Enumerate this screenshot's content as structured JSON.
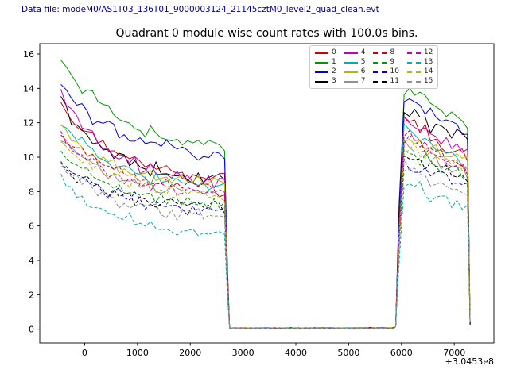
{
  "header": {
    "data_file_label": "Data file: modeM0/AS1T03_136T01_9000003124_21145cztM0_level2_quad_clean.evt"
  },
  "chart_data": {
    "type": "line",
    "title": "Quadrant 0 module wise count rates with 100.0s bins.",
    "xlabel": "",
    "ylabel": "",
    "x_offset_label": "+3.0453e8",
    "x_units_note": "time in seconds relative to offset shown at bottom right",
    "bin_size_s": 100.0,
    "xlim": [
      -850,
      7750
    ],
    "ylim": [
      -0.8,
      16.6
    ],
    "x_ticks": [
      0,
      1000,
      2000,
      3000,
      4000,
      5000,
      6000,
      7000
    ],
    "y_ticks": [
      0,
      2,
      4,
      6,
      8,
      10,
      12,
      14,
      16
    ],
    "grid": false,
    "legend_position": "upper center-right, 4 columns",
    "profile": {
      "observe_start_x": -450,
      "decline_end_x": 2650,
      "drop_to_zero_x": 2745,
      "gap_range_x": [
        2750,
        5850
      ],
      "gap_level": 0.05,
      "rise_start_x": 5890,
      "peak_x": 6050,
      "decline2_end_x": 7250,
      "final_drop_x": 7300
    },
    "series": [
      {
        "name": "0",
        "color": "#d40000",
        "dash": false,
        "levels": {
          "start": 13.0,
          "plateau_end": 8.6,
          "peak": 12.3,
          "end": 9.8
        }
      },
      {
        "name": "1",
        "color": "#009900",
        "dash": false,
        "levels": {
          "start": 15.8,
          "plateau_end": 10.4,
          "peak": 14.0,
          "end": 11.8
        }
      },
      {
        "name": "2",
        "color": "#0000e0",
        "dash": false,
        "levels": {
          "start": 14.2,
          "plateau_end": 9.9,
          "peak": 13.5,
          "end": 11.2
        }
      },
      {
        "name": "3",
        "color": "#000000",
        "dash": false,
        "levels": {
          "start": 13.2,
          "plateau_end": 8.4,
          "peak": 12.6,
          "end": 10.9
        }
      },
      {
        "name": "4",
        "color": "#c000c0",
        "dash": false,
        "levels": {
          "start": 13.6,
          "plateau_end": 8.2,
          "peak": 12.0,
          "end": 10.2
        }
      },
      {
        "name": "5",
        "color": "#00b0b0",
        "dash": false,
        "levels": {
          "start": 12.2,
          "plateau_end": 8.0,
          "peak": 11.6,
          "end": 9.6
        }
      },
      {
        "name": "6",
        "color": "#b8b800",
        "dash": false,
        "levels": {
          "start": 11.6,
          "plateau_end": 8.3,
          "peak": 11.2,
          "end": 9.9
        }
      },
      {
        "name": "7",
        "color": "#909090",
        "dash": false,
        "levels": {
          "start": 11.2,
          "plateau_end": 7.6,
          "peak": 10.8,
          "end": 9.0
        }
      },
      {
        "name": "8",
        "color": "#d40000",
        "dash": true,
        "levels": {
          "start": 11.4,
          "plateau_end": 7.9,
          "peak": 11.4,
          "end": 9.4
        }
      },
      {
        "name": "9",
        "color": "#009900",
        "dash": true,
        "levels": {
          "start": 10.3,
          "plateau_end": 7.1,
          "peak": 10.4,
          "end": 8.8
        }
      },
      {
        "name": "10",
        "color": "#0000e0",
        "dash": true,
        "levels": {
          "start": 9.8,
          "plateau_end": 6.7,
          "peak": 9.8,
          "end": 8.3
        }
      },
      {
        "name": "11",
        "color": "#000000",
        "dash": true,
        "levels": {
          "start": 9.6,
          "plateau_end": 6.9,
          "peak": 10.0,
          "end": 8.6
        }
      },
      {
        "name": "12",
        "color": "#c000c0",
        "dash": true,
        "levels": {
          "start": 11.2,
          "plateau_end": 7.7,
          "peak": 11.0,
          "end": 9.2
        }
      },
      {
        "name": "13",
        "color": "#00b0b0",
        "dash": true,
        "levels": {
          "start": 8.8,
          "plateau_end": 5.3,
          "peak": 8.5,
          "end": 7.0
        }
      },
      {
        "name": "14",
        "color": "#b8b800",
        "dash": true,
        "levels": {
          "start": 11.0,
          "plateau_end": 7.6,
          "peak": 10.6,
          "end": 9.3
        }
      },
      {
        "name": "15",
        "color": "#909090",
        "dash": true,
        "levels": {
          "start": 9.4,
          "plateau_end": 6.4,
          "peak": 9.4,
          "end": 7.8
        }
      }
    ]
  }
}
